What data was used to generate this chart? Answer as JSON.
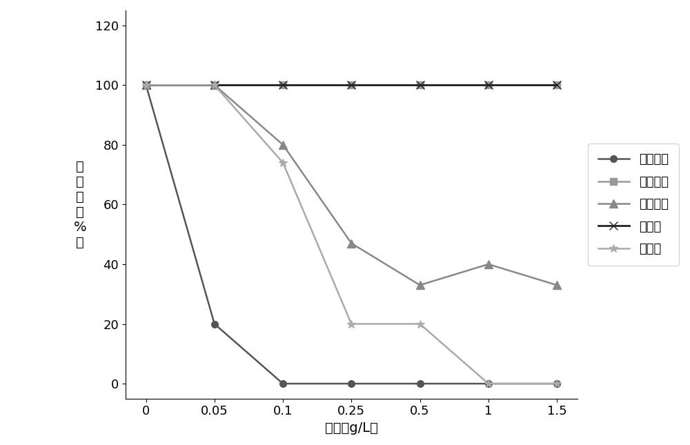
{
  "x_positions": [
    0,
    1,
    2,
    3,
    4,
    5,
    6
  ],
  "x_labels": [
    "0",
    "0.05",
    "0.1",
    "0.25",
    "0.5",
    "1",
    "1.5"
  ],
  "series": [
    {
      "label": "代森锰锡",
      "y": [
        100,
        20,
        0,
        0,
        0,
        0,
        0
      ],
      "color": "#555555",
      "marker": "o",
      "markersize": 7,
      "linewidth": 1.8,
      "linestyle": "-",
      "markerfacecolor": "#555555"
    },
    {
      "label": "山梨酸镉",
      "y": [
        100,
        100,
        100,
        100,
        100,
        100,
        100
      ],
      "color": "#999999",
      "marker": "s",
      "markersize": 7,
      "linewidth": 1.8,
      "linestyle": "-",
      "markerfacecolor": "#999999"
    },
    {
      "label": "次氯酸钓",
      "y": [
        100,
        100,
        80,
        47,
        33,
        40,
        33
      ],
      "color": "#888888",
      "marker": "^",
      "markersize": 8,
      "linewidth": 1.8,
      "linestyle": "-",
      "markerfacecolor": "#888888"
    },
    {
      "label": "多菌灵",
      "y": [
        100,
        100,
        100,
        100,
        100,
        100,
        100
      ],
      "color": "#222222",
      "marker": "x",
      "markersize": 8,
      "linewidth": 2.0,
      "linestyle": "-",
      "markerfacecolor": "#222222"
    },
    {
      "label": "百菌清",
      "y": [
        100,
        100,
        74,
        20,
        20,
        0,
        0
      ],
      "color": "#aaaaaa",
      "marker": "*",
      "markersize": 9,
      "linewidth": 1.8,
      "linestyle": "-",
      "markerfacecolor": "#aaaaaa"
    }
  ],
  "xlabel": "浓度（g/L）",
  "ylabel_chars": [
    "污",
    "染",
    "率",
    "（",
    "%",
    "）"
  ],
  "ylim": [
    -5,
    125
  ],
  "yticks": [
    0,
    20,
    40,
    60,
    80,
    100,
    120
  ],
  "background_color": "#ffffff",
  "font_size": 14,
  "tick_fontsize": 13,
  "legend_fontsize": 13
}
